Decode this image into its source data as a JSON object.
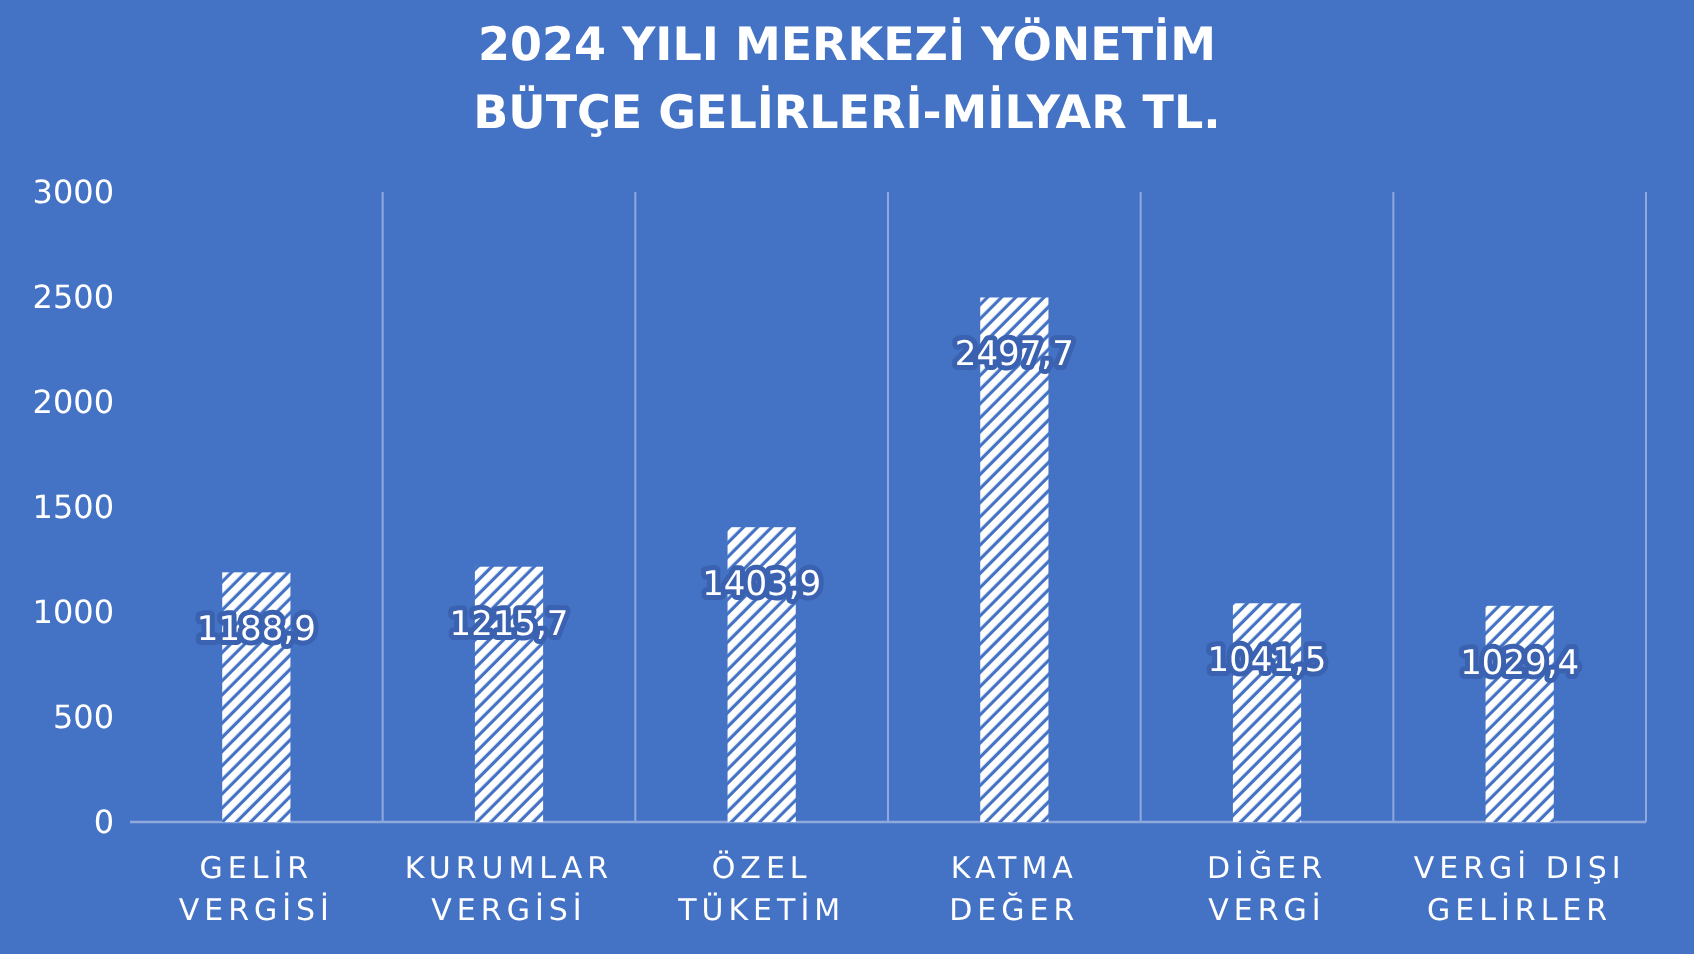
{
  "chart_data": {
    "type": "bar",
    "title": "2024 YILI MERKEZİ YÖNETİM BÜTÇE GELİRLERİ-MİLYAR TL.",
    "categories": [
      "GELİR VERGİSİ",
      "KURUMLAR VERGİSİ",
      "ÖZEL TÜKETİM",
      "KATMA DEĞER",
      "DİĞER VERGİ",
      "VERGİ DIŞI GELİRLER"
    ],
    "values": [
      1188.9,
      1215.7,
      1403.9,
      2497.7,
      1041.5,
      1029.4
    ],
    "value_labels": [
      "1188,9",
      "1215,7",
      "1403,9",
      "2497,7",
      "1041,5",
      "1029,4"
    ],
    "color": "#ffffff",
    "ylim": [
      0,
      3000
    ],
    "yticks": [
      0,
      500,
      1000,
      1500,
      2000,
      2500,
      3000
    ],
    "grid": "x"
  }
}
